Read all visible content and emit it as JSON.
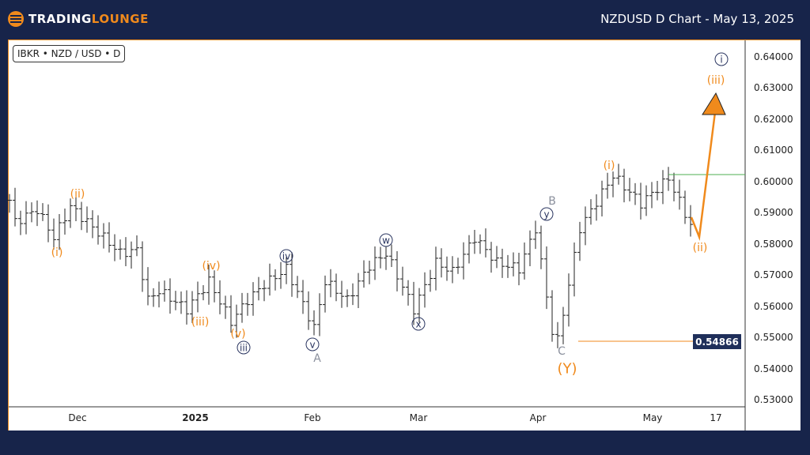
{
  "header": {
    "logo_a": "TRADING",
    "logo_b": "LOUNGE",
    "title": "NZDUSD D Chart - May 13, 2025"
  },
  "symbol_label": "IBKR • NZD / USD • D",
  "price_tag": "0.54866",
  "colors": {
    "bg": "#17244a",
    "accent": "#f08a1c",
    "navy": "#2a3560",
    "green": "#4caf50"
  },
  "chart_data": {
    "type": "ohlc",
    "title": "NZDUSD D Chart",
    "y_ticks": [
      "0.64000",
      "0.63000",
      "0.62000",
      "0.61000",
      "0.60000",
      "0.59000",
      "0.58000",
      "0.57000",
      "0.56000",
      "0.55000",
      "0.54000",
      "0.53000"
    ],
    "ylim": [
      0.527,
      0.644
    ],
    "x_ticks": [
      "Dec",
      "2025",
      "Feb",
      "Mar",
      "Apr",
      "May",
      "17"
    ],
    "swings": [
      [
        0,
        0.594
      ],
      [
        1,
        0.587
      ],
      [
        5,
        0.591
      ],
      [
        8,
        0.582
      ],
      [
        11,
        0.592
      ],
      [
        20,
        0.577
      ],
      [
        23,
        0.578
      ],
      [
        25,
        0.562
      ],
      [
        27,
        0.565
      ],
      [
        32,
        0.559
      ],
      [
        36,
        0.568
      ],
      [
        40,
        0.555
      ],
      [
        43,
        0.562
      ],
      [
        46,
        0.567
      ],
      [
        50,
        0.572
      ],
      [
        55,
        0.553
      ],
      [
        57,
        0.568
      ],
      [
        61,
        0.562
      ],
      [
        65,
        0.573
      ],
      [
        68,
        0.577
      ],
      [
        73,
        0.559
      ],
      [
        77,
        0.574
      ],
      [
        80,
        0.571
      ],
      [
        84,
        0.582
      ],
      [
        88,
        0.574
      ],
      [
        92,
        0.572
      ],
      [
        95,
        0.585
      ],
      [
        98,
        0.552
      ],
      [
        99,
        0.549
      ],
      [
        103,
        0.585
      ],
      [
        109,
        0.602
      ],
      [
        114,
        0.593
      ],
      [
        119,
        0.601
      ],
      [
        123,
        0.586
      ]
    ],
    "support_level": 0.54866,
    "resistance_level": 0.6025,
    "wave_labels": [
      "(i)",
      "(ii)",
      "(iv)",
      "(iii)",
      "(v)",
      "iii",
      "iv",
      "v",
      "A",
      "w",
      "x",
      "y",
      "B",
      "C",
      "(Y)",
      "(i)",
      "(ii)",
      "(iii)",
      "i"
    ]
  }
}
